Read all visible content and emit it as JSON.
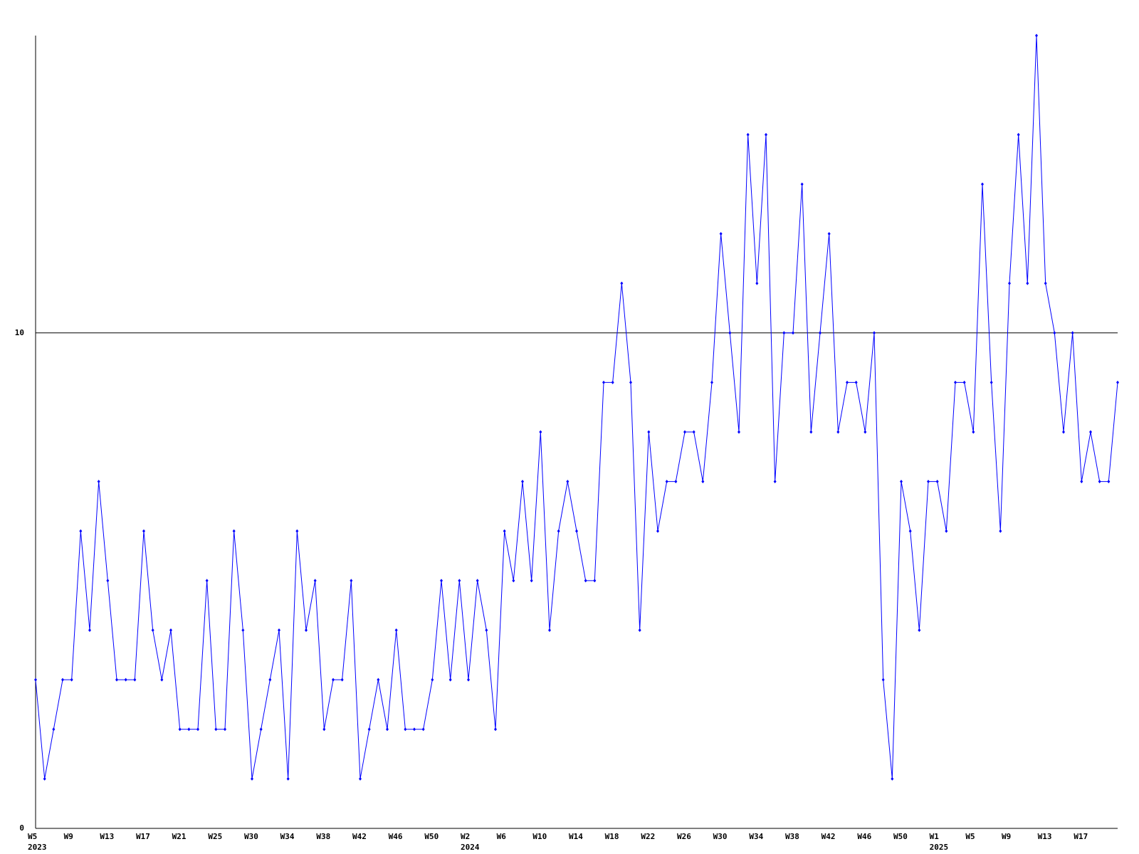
{
  "chart_data": {
    "type": "line",
    "categories": [
      "W5",
      null,
      null,
      null,
      "W9",
      null,
      null,
      null,
      "W13",
      null,
      null,
      null,
      "W17",
      null,
      null,
      null,
      "W21",
      null,
      null,
      null,
      "W25",
      null,
      null,
      null,
      "W30",
      null,
      null,
      null,
      "W34",
      null,
      null,
      null,
      "W38",
      null,
      null,
      null,
      "W42",
      null,
      null,
      null,
      "W46",
      null,
      null,
      null,
      "W50",
      null,
      null,
      null,
      "W2",
      null,
      null,
      null,
      "W6",
      null,
      null,
      null,
      "W10",
      null,
      null,
      null,
      "W14",
      null,
      null,
      null,
      "W18",
      null,
      null,
      null,
      "W22",
      null,
      null,
      null,
      "W26",
      null,
      null,
      null,
      "W30",
      null,
      null,
      null,
      "W34",
      null,
      null,
      null,
      "W38",
      null,
      null,
      null,
      "W42",
      null,
      null,
      null,
      "W46",
      null,
      null,
      null,
      "W50",
      null,
      null,
      null,
      "W1",
      null,
      null,
      null,
      "W5",
      null,
      null,
      null,
      "W9",
      null,
      null,
      null,
      "W13",
      null,
      null,
      null,
      "W17",
      null,
      null,
      null,
      null
    ],
    "years": [
      "2023",
      null,
      null,
      null,
      null,
      null,
      null,
      null,
      null,
      null,
      null,
      null,
      null,
      null,
      null,
      null,
      null,
      null,
      null,
      null,
      null,
      null,
      null,
      null,
      null,
      null,
      null,
      null,
      null,
      null,
      null,
      null,
      null,
      null,
      null,
      null,
      null,
      null,
      null,
      null,
      null,
      null,
      null,
      null,
      null,
      null,
      null,
      null,
      "2024",
      null,
      null,
      null,
      null,
      null,
      null,
      null,
      null,
      null,
      null,
      null,
      null,
      null,
      null,
      null,
      null,
      null,
      null,
      null,
      null,
      null,
      null,
      null,
      null,
      null,
      null,
      null,
      null,
      null,
      null,
      null,
      null,
      null,
      null,
      null,
      null,
      null,
      null,
      null,
      null,
      null,
      null,
      null,
      null,
      null,
      null,
      null,
      null,
      null,
      null,
      null,
      "2025",
      null,
      null,
      null,
      null,
      null,
      null,
      null,
      null,
      null,
      null,
      null,
      null,
      null,
      null,
      null,
      null,
      null,
      null,
      null,
      null
    ],
    "series": [
      {
        "color": "#0000ff",
        "values": [
          3,
          1,
          2,
          3,
          3,
          6,
          4,
          7,
          5,
          3,
          3,
          3,
          6,
          4,
          3,
          4,
          2,
          2,
          2,
          5,
          2,
          2,
          6,
          4,
          1,
          2,
          3,
          4,
          1,
          6,
          4,
          5,
          2,
          3,
          3,
          5,
          1,
          2,
          3,
          2,
          4,
          2,
          2,
          2,
          3,
          5,
          3,
          5,
          3,
          5,
          4,
          2,
          6,
          5,
          7,
          5,
          8,
          4,
          6,
          7,
          6,
          5,
          5,
          9,
          9,
          11,
          9,
          4,
          8,
          6,
          7,
          7,
          8,
          8,
          7,
          9,
          12,
          10,
          8,
          14,
          11,
          14,
          7,
          10,
          10,
          13,
          8,
          10,
          12,
          8,
          9,
          9,
          8,
          10,
          3,
          1,
          7,
          6,
          4,
          7,
          7,
          6,
          9,
          9,
          8,
          13,
          9,
          6,
          11,
          14,
          11,
          16,
          11,
          10,
          8,
          10,
          7,
          8,
          7,
          7,
          9
        ]
      }
    ],
    "ylim": [
      0,
      16
    ],
    "yticks": [
      0,
      10
    ],
    "grid": true
  }
}
